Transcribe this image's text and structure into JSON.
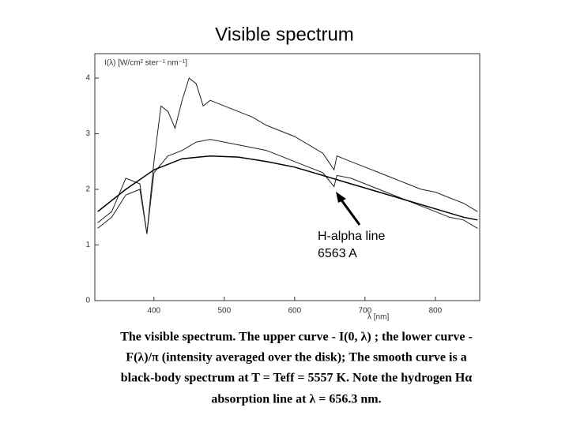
{
  "chart_data": {
    "type": "line",
    "title": "Visible spectrum",
    "y_label": "I(λ) [W/cm² ster⁻¹ nm⁻¹]",
    "x_label": "λ [nm]",
    "xlim": [
      316,
      863
    ],
    "xticks": [
      400,
      500,
      600,
      700,
      800
    ],
    "ylim": [
      0,
      4.44
    ],
    "yticks": [
      0,
      1,
      2,
      3,
      4
    ],
    "grid": false,
    "series": [
      {
        "color": "#222222",
        "x": [
          320,
          340,
          360,
          380,
          390,
          400,
          410,
          420,
          430,
          440,
          450,
          460,
          470,
          480,
          500,
          520,
          540,
          560,
          580,
          600,
          620,
          640,
          656,
          660,
          680,
          700,
          720,
          740,
          760,
          780,
          800,
          820,
          840,
          860
        ],
        "values": [
          1.4,
          1.6,
          2.2,
          2.1,
          1.2,
          2.5,
          3.5,
          3.4,
          3.1,
          3.6,
          4.0,
          3.9,
          3.5,
          3.6,
          3.5,
          3.4,
          3.3,
          3.15,
          3.05,
          2.95,
          2.8,
          2.65,
          2.35,
          2.6,
          2.5,
          2.4,
          2.3,
          2.2,
          2.1,
          2.0,
          1.95,
          1.85,
          1.75,
          1.6
        ]
      },
      {
        "color": "#222222",
        "x": [
          320,
          340,
          360,
          380,
          390,
          400,
          420,
          440,
          460,
          480,
          500,
          520,
          540,
          560,
          580,
          600,
          620,
          640,
          656,
          660,
          680,
          700,
          720,
          740,
          760,
          780,
          800,
          820,
          840,
          860
        ],
        "values": [
          1.3,
          1.5,
          1.9,
          2.0,
          1.2,
          2.3,
          2.6,
          2.7,
          2.85,
          2.9,
          2.85,
          2.8,
          2.75,
          2.7,
          2.6,
          2.5,
          2.4,
          2.3,
          2.05,
          2.25,
          2.2,
          2.1,
          2.0,
          1.9,
          1.8,
          1.7,
          1.6,
          1.5,
          1.45,
          1.3
        ]
      },
      {
        "color": "#000000",
        "x": [
          320,
          360,
          400,
          440,
          480,
          520,
          560,
          600,
          640,
          680,
          720,
          760,
          800,
          840,
          860
        ],
        "values": [
          1.6,
          2.0,
          2.35,
          2.55,
          2.6,
          2.58,
          2.5,
          2.4,
          2.25,
          2.1,
          1.95,
          1.8,
          1.65,
          1.5,
          1.45
        ]
      }
    ],
    "annotation": [
      "H-alpha line",
      "6563 A"
    ],
    "caption": [
      "The visible spectrum. The upper curve - I(0, λ) ; the lower curve -",
      "F(λ)/π (intensity averaged over the disk); The smooth curve is a",
      "black-body spectrum at T = Teff = 5557 K. Note the hydrogen Hα",
      "absorption line at λ = 656.3 nm."
    ]
  }
}
